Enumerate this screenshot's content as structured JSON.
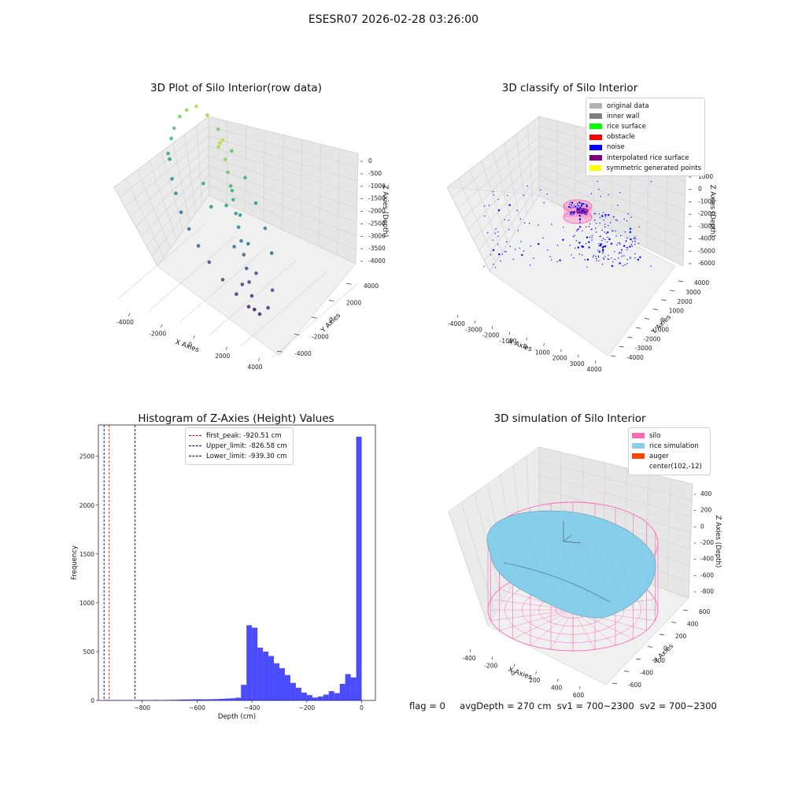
{
  "suptitle": "ESESR07 2026-02-28 03:26:00",
  "status": {
    "flag": "flag = 0",
    "avg_depth": "avgDepth = 270 cm",
    "sv1": "sv1 = 700~2300",
    "sv2": "sv2 = 700~2300"
  },
  "colors": {
    "histogram": "#0000ff",
    "first_peak": "#ff0000",
    "limits": "#00008b",
    "silo": "#ff69b4",
    "rice_simulation": "#87ceeb",
    "auger": "#ff4500",
    "noise": "#0000ff"
  },
  "chart_data": [
    {
      "type": "scatter",
      "title": "3D Plot of Silo Interior(row data)",
      "xlabel": "X Axies",
      "ylabel": "Y Axies",
      "zlabel": "Z Axies (Depth)",
      "x_ticks": [
        "-4000",
        "-2000",
        "0",
        "2000",
        "4000"
      ],
      "y_ticks": [
        "-4000",
        "-2000",
        "0",
        "2000",
        "4000"
      ],
      "z_ticks": [
        "0",
        "-500",
        "-1000",
        "-1500",
        "-2000",
        "-2500",
        "-3000",
        "-3500",
        "-4000"
      ],
      "colormap": "viridis",
      "points": [
        {
          "x": -3800,
          "y": -500,
          "z": -1600
        },
        {
          "x": -3700,
          "y": 200,
          "z": -1900
        },
        {
          "x": -3600,
          "y": 800,
          "z": -1400
        },
        {
          "x": -3500,
          "y": -1200,
          "z": -2100
        },
        {
          "x": -3400,
          "y": 1500,
          "z": -1200
        },
        {
          "x": -3200,
          "y": -1800,
          "z": -2300
        },
        {
          "x": -3000,
          "y": 2200,
          "z": -900
        },
        {
          "x": -2800,
          "y": -2400,
          "z": -2600
        },
        {
          "x": -2500,
          "y": 2800,
          "z": -700
        },
        {
          "x": -2200,
          "y": -2900,
          "z": -2800
        },
        {
          "x": -1800,
          "y": 3300,
          "z": -500
        },
        {
          "x": -1500,
          "y": -3300,
          "z": -3000
        },
        {
          "x": -1000,
          "y": 3600,
          "z": -600
        },
        {
          "x": -700,
          "y": -3500,
          "z": -3200
        },
        {
          "x": -200,
          "y": 3700,
          "z": -800
        },
        {
          "x": 300,
          "y": -3600,
          "z": -3400
        },
        {
          "x": 800,
          "y": 3500,
          "z": -1100
        },
        {
          "x": 1300,
          "y": -3300,
          "z": -3600
        },
        {
          "x": 1800,
          "y": 3100,
          "z": -1500
        },
        {
          "x": 2200,
          "y": -2900,
          "z": -3800
        },
        {
          "x": 2600,
          "y": 2600,
          "z": -1900
        },
        {
          "x": 3000,
          "y": -2400,
          "z": -3900
        },
        {
          "x": 3300,
          "y": 2000,
          "z": -2300
        },
        {
          "x": 3600,
          "y": -1700,
          "z": -3700
        },
        {
          "x": 3800,
          "y": 1200,
          "z": -2700
        },
        {
          "x": 3900,
          "y": -800,
          "z": -3300
        },
        {
          "x": 0,
          "y": 500,
          "z": -400
        },
        {
          "x": 200,
          "y": 700,
          "z": -300
        },
        {
          "x": -100,
          "y": 300,
          "z": -500
        },
        {
          "x": 400,
          "y": 200,
          "z": -700
        },
        {
          "x": 600,
          "y": 100,
          "z": -1000
        },
        {
          "x": 800,
          "y": -100,
          "z": -1300
        },
        {
          "x": 1000,
          "y": -300,
          "z": -1600
        },
        {
          "x": 1200,
          "y": -500,
          "z": -1900
        },
        {
          "x": 1400,
          "y": -700,
          "z": -2200
        },
        {
          "x": 1600,
          "y": -900,
          "z": -2500
        },
        {
          "x": 1800,
          "y": -1100,
          "z": -2800
        },
        {
          "x": 2000,
          "y": -1300,
          "z": -3100
        },
        {
          "x": 2200,
          "y": -1500,
          "z": -3400
        },
        {
          "x": 2400,
          "y": -1700,
          "z": -3700
        },
        {
          "x": 2600,
          "y": -1900,
          "z": -4000
        },
        {
          "x": 900,
          "y": 300,
          "z": -1500
        },
        {
          "x": 1500,
          "y": 100,
          "z": -2000
        },
        {
          "x": 2100,
          "y": -200,
          "z": -2600
        },
        {
          "x": 2700,
          "y": -600,
          "z": -3200
        },
        {
          "x": 500,
          "y": -800,
          "z": -1800
        },
        {
          "x": 1100,
          "y": -1400,
          "z": -2700
        },
        {
          "x": 1700,
          "y": -2000,
          "z": -3500
        },
        {
          "x": -600,
          "y": -1500,
          "z": -2000
        },
        {
          "x": -1200,
          "y": -600,
          "z": -1700
        }
      ]
    },
    {
      "type": "scatter",
      "title": "3D classify of Silo Interior",
      "xlabel": "X Axies",
      "ylabel": "Y Axies",
      "zlabel": "Z Axies (Depth)",
      "x_ticks": [
        "-4000",
        "-3000",
        "-2000",
        "-1000",
        "0",
        "1000",
        "2000",
        "3000",
        "4000"
      ],
      "y_ticks": [
        "-4000",
        "-3000",
        "-2000",
        "-1000",
        "0",
        "1000",
        "2000",
        "3000",
        "4000"
      ],
      "z_ticks": [
        "1000",
        "0",
        "-1000",
        "-2000",
        "-3000",
        "-4000",
        "-5000",
        "-6000"
      ],
      "legend": [
        {
          "label": "original data",
          "color": "#b3b3b3"
        },
        {
          "label": "inner wall",
          "color": "#808080"
        },
        {
          "label": "rice surface",
          "color": "#00ff00"
        },
        {
          "label": "obstacle",
          "color": "#ff0000"
        },
        {
          "label": "noise",
          "color": "#0000ff"
        },
        {
          "label": "interpolated rice surface",
          "color": "#800080"
        },
        {
          "label": "symmetric generated points",
          "color": "#ffff00"
        }
      ]
    },
    {
      "type": "bar",
      "title": "Histogram of Z-Axies (Height) Values",
      "xlabel": "Depth (cm)",
      "ylabel": "Frequency",
      "xlim": [
        -960,
        50
      ],
      "ylim": [
        0,
        2820
      ],
      "x_ticks": [
        -800,
        -600,
        -400,
        -200,
        0
      ],
      "y_ticks": [
        0,
        500,
        1000,
        1500,
        2000,
        2500
      ],
      "bin_width": 20,
      "bins": [
        {
          "x": -940,
          "count": 5
        },
        {
          "x": -920,
          "count": 3
        },
        {
          "x": -900,
          "count": 2
        },
        {
          "x": -880,
          "count": 2
        },
        {
          "x": -860,
          "count": 4
        },
        {
          "x": -840,
          "count": 3
        },
        {
          "x": -820,
          "count": 2
        },
        {
          "x": -800,
          "count": 4
        },
        {
          "x": -780,
          "count": 3
        },
        {
          "x": -760,
          "count": 5
        },
        {
          "x": -740,
          "count": 4
        },
        {
          "x": -720,
          "count": 5
        },
        {
          "x": -700,
          "count": 6
        },
        {
          "x": -680,
          "count": 7
        },
        {
          "x": -660,
          "count": 9
        },
        {
          "x": -640,
          "count": 10
        },
        {
          "x": -620,
          "count": 11
        },
        {
          "x": -600,
          "count": 12
        },
        {
          "x": -580,
          "count": 11
        },
        {
          "x": -560,
          "count": 12
        },
        {
          "x": -540,
          "count": 14
        },
        {
          "x": -520,
          "count": 16
        },
        {
          "x": -500,
          "count": 20
        },
        {
          "x": -480,
          "count": 22
        },
        {
          "x": -460,
          "count": 28
        },
        {
          "x": -440,
          "count": 160
        },
        {
          "x": -420,
          "count": 770
        },
        {
          "x": -400,
          "count": 745
        },
        {
          "x": -380,
          "count": 540
        },
        {
          "x": -360,
          "count": 500
        },
        {
          "x": -340,
          "count": 455
        },
        {
          "x": -320,
          "count": 380
        },
        {
          "x": -300,
          "count": 330
        },
        {
          "x": -280,
          "count": 260
        },
        {
          "x": -260,
          "count": 180
        },
        {
          "x": -240,
          "count": 130
        },
        {
          "x": -220,
          "count": 80
        },
        {
          "x": -200,
          "count": 55
        },
        {
          "x": -180,
          "count": 30
        },
        {
          "x": -160,
          "count": 40
        },
        {
          "x": -140,
          "count": 60
        },
        {
          "x": -120,
          "count": 95
        },
        {
          "x": -100,
          "count": 75
        },
        {
          "x": -80,
          "count": 170
        },
        {
          "x": -60,
          "count": 270
        },
        {
          "x": -40,
          "count": 235
        },
        {
          "x": -20,
          "count": 2700
        }
      ],
      "vlines": [
        {
          "label": "first_peak: -920.51 cm",
          "x": -920.51,
          "color": "#ff0000"
        },
        {
          "label": "Upper_limit: -826.58 cm",
          "x": -826.58,
          "color": "#00008b"
        },
        {
          "label": "Lower_limit: -939.30 cm",
          "x": -939.3,
          "color": "#00008b"
        }
      ]
    },
    {
      "type": "area",
      "title": "3D simulation of Silo Interior",
      "xlabel": "X Axies",
      "ylabel": "Y Axies",
      "zlabel": "Z Axies (Depth)",
      "x_ticks": [
        "-400",
        "-200",
        "0",
        "200",
        "400",
        "600"
      ],
      "y_ticks": [
        "-600",
        "-400",
        "-200",
        "0",
        "200",
        "400",
        "600"
      ],
      "z_ticks": [
        "400",
        "200",
        "0",
        "-200",
        "-400",
        "-600",
        "-800"
      ],
      "legend": [
        {
          "label": "silo",
          "color": "#ff69b4"
        },
        {
          "label": "rice simulation",
          "color": "#87ceeb"
        },
        {
          "label": "auger",
          "color": "#ff4500"
        },
        {
          "label": "center(102,-12)",
          "color": ""
        }
      ]
    }
  ]
}
